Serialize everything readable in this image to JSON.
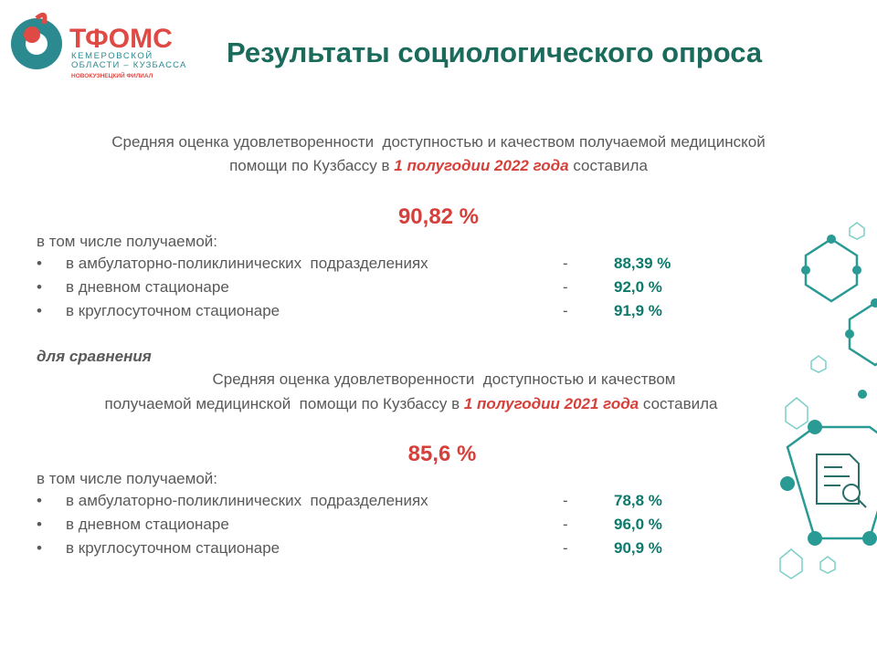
{
  "logo": {
    "name": "ТФОМС",
    "line1": "КЕМЕРОВСКОЙ",
    "line2": "ОБЛАСТИ – КУЗБАССА",
    "branch": "НОВОКУЗНЕЦКИЙ ФИЛИАЛ"
  },
  "title": "Результаты социологического опроса",
  "separator": "-",
  "current": {
    "intro_line1": "Средняя оценка удовлетворенности  доступностью и качеством получаемой медицинской",
    "intro_before": "помощи по Кузбассу в ",
    "intro_emphasis": "1 полугодии 2022 года",
    "intro_after": " составила",
    "total": "90,82 %",
    "subtitle": "в том числе получаемой:",
    "items": [
      {
        "label": "в амбулаторно-поликлинических  подразделениях",
        "value": "88,39 %"
      },
      {
        "label": "в дневном стационаре",
        "value": "92,0 %"
      },
      {
        "label": "в круглосуточном стационаре",
        "value": "91,9 %"
      }
    ]
  },
  "comparison": {
    "heading": "для сравнения",
    "intro_line1": "Средняя оценка удовлетворенности  доступностью и качеством",
    "intro_before": "получаемой медицинской  помощи по Кузбассу в ",
    "intro_emphasis": "1 полугодии 2021 года",
    "intro_after": " составила",
    "total": "85,6 %",
    "subtitle": "в том числе получаемой:",
    "items": [
      {
        "label": "в амбулаторно-поликлинических  подразделениях",
        "value": "78,8 %"
      },
      {
        "label": "в дневном стационаре",
        "value": "96,0 %"
      },
      {
        "label": "в круглосуточном стационаре",
        "value": "90,9 %"
      }
    ]
  }
}
